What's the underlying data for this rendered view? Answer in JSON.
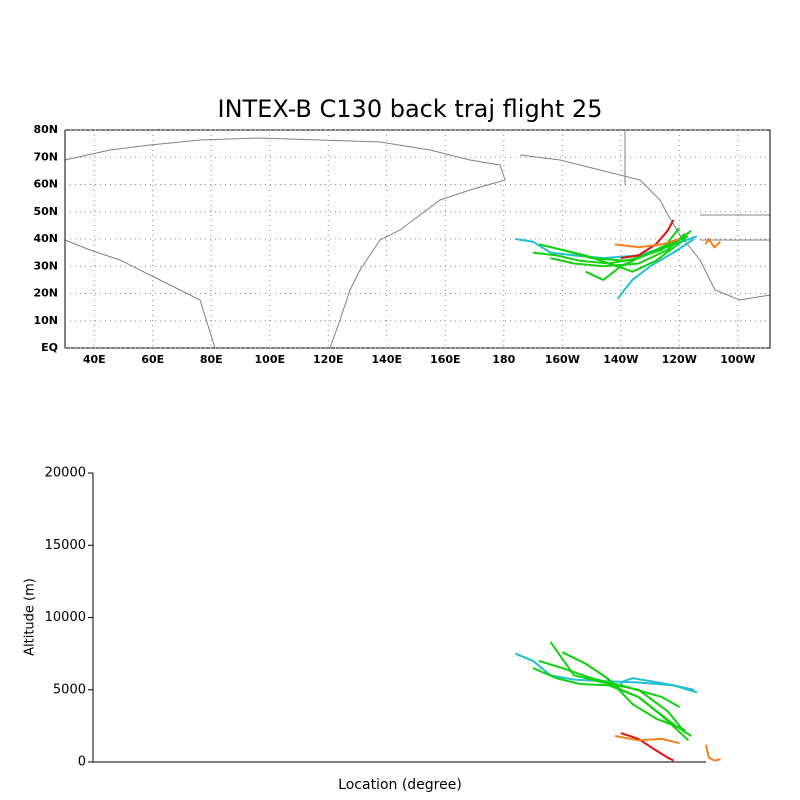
{
  "chart_data": [
    {
      "type": "map",
      "title": "INTEX-B C130 back traj flight 25",
      "xlim": [
        30,
        271
      ],
      "ylim": [
        0,
        80
      ],
      "xticks": [
        {
          "value": 40,
          "label": "40E"
        },
        {
          "value": 60,
          "label": "60E"
        },
        {
          "value": 80,
          "label": "80E"
        },
        {
          "value": 100,
          "label": "100E"
        },
        {
          "value": 120,
          "label": "120E"
        },
        {
          "value": 140,
          "label": "140E"
        },
        {
          "value": 160,
          "label": "160E"
        },
        180,
        {
          "value": 200,
          "label": "160W"
        },
        {
          "value": 220,
          "label": "140W"
        },
        {
          "value": 240,
          "label": "120W"
        },
        {
          "value": 260,
          "label": "100W"
        }
      ],
      "yticks": [
        {
          "value": 0,
          "label": "EQ"
        },
        {
          "value": 10,
          "label": "10N"
        },
        {
          "value": 20,
          "label": "20N"
        },
        {
          "value": 30,
          "label": "30N"
        },
        {
          "value": 40,
          "label": "40N"
        },
        {
          "value": 50,
          "label": "50N"
        },
        {
          "value": 60,
          "label": "60N"
        },
        {
          "value": 70,
          "label": "70N"
        },
        {
          "value": 80,
          "label": "80N"
        }
      ],
      "grid": true,
      "series": [
        {
          "color": "#20c0d0",
          "lon": [
            184,
            190,
            196,
            204,
            214,
            226,
            238,
            246
          ],
          "lat": [
            40,
            39,
            35,
            34,
            33,
            34,
            38,
            41
          ]
        },
        {
          "color": "#20c0d0",
          "lon": [
            219,
            221,
            224,
            230,
            238,
            245
          ],
          "lat": [
            18,
            21,
            25,
            30,
            35,
            40
          ]
        },
        {
          "color": "#10d010",
          "lon": [
            192,
            200,
            210,
            222,
            234,
            240
          ],
          "lat": [
            38,
            36,
            33,
            32,
            36,
            44
          ]
        },
        {
          "color": "#10d010",
          "lon": [
            196,
            204,
            214,
            226,
            236,
            242
          ],
          "lat": [
            33,
            31,
            30,
            31,
            36,
            42
          ]
        },
        {
          "color": "#10d010",
          "lon": [
            200,
            208,
            216,
            224,
            232,
            242
          ],
          "lat": [
            36,
            34,
            31,
            28,
            32,
            40
          ]
        },
        {
          "color": "#10d010",
          "lon": [
            208,
            214,
            220,
            226,
            234,
            243
          ],
          "lat": [
            28,
            25,
            30,
            33,
            37,
            41
          ]
        },
        {
          "color": "#10d010",
          "lon": [
            190,
            198,
            206,
            216,
            226,
            238,
            244
          ],
          "lat": [
            35,
            34,
            32,
            31,
            33,
            38,
            43
          ]
        },
        {
          "color": "#e01010",
          "lon": [
            220,
            226,
            232,
            236,
            238
          ],
          "lat": [
            33,
            34,
            38,
            43,
            47
          ]
        },
        {
          "color": "#f08020",
          "lon": [
            218,
            226,
            234,
            240
          ],
          "lat": [
            38,
            37,
            38,
            40
          ]
        },
        {
          "color": "#f08020",
          "lon": [
            249,
            250,
            252,
            254
          ],
          "lat": [
            38,
            40,
            37,
            39
          ]
        }
      ]
    },
    {
      "type": "line",
      "xlabel": "Location (degree)",
      "ylabel": "Altitude (m)",
      "xlim": [
        40,
        249
      ],
      "ylim": [
        0,
        20000
      ],
      "yticks": [
        0,
        5000,
        10000,
        15000,
        20000
      ],
      "series": [
        {
          "color": "#20c0d0",
          "x": [
            184,
            190,
            196,
            204,
            214,
            226,
            238,
            246
          ],
          "values": [
            7500,
            7000,
            6000,
            5700,
            5600,
            5500,
            5300,
            4800
          ]
        },
        {
          "color": "#20c0d0",
          "x": [
            219,
            221,
            224,
            230,
            238,
            245
          ],
          "values": [
            5200,
            5600,
            5800,
            5600,
            5300,
            5000
          ]
        },
        {
          "color": "#10d010",
          "x": [
            192,
            200,
            210,
            222,
            234,
            240
          ],
          "values": [
            7000,
            6500,
            5800,
            5200,
            4500,
            3800
          ]
        },
        {
          "color": "#10d010",
          "x": [
            196,
            204,
            214,
            226,
            236,
            242
          ],
          "values": [
            8300,
            6000,
            5500,
            5000,
            3500,
            2000
          ]
        },
        {
          "color": "#10d010",
          "x": [
            200,
            208,
            216,
            224,
            232,
            242
          ],
          "values": [
            7600,
            6800,
            5700,
            4000,
            3000,
            2200
          ]
        },
        {
          "color": "#10d010",
          "x": [
            208,
            214,
            220,
            226,
            234,
            243
          ],
          "values": [
            6800,
            6000,
            5000,
            4500,
            3200,
            1500
          ]
        },
        {
          "color": "#10d010",
          "x": [
            190,
            198,
            206,
            216,
            226,
            238,
            244
          ],
          "values": [
            6500,
            5800,
            5400,
            5300,
            4500,
            2600,
            1800
          ]
        },
        {
          "color": "#e01010",
          "x": [
            220,
            226,
            232,
            236,
            238
          ],
          "values": [
            2000,
            1600,
            800,
            300,
            100
          ]
        },
        {
          "color": "#f08020",
          "x": [
            218,
            226,
            234,
            240
          ],
          "values": [
            1800,
            1500,
            1600,
            1300
          ]
        },
        {
          "color": "#f08020",
          "x": [
            249,
            250,
            252,
            254
          ],
          "values": [
            1200,
            300,
            100,
            200
          ]
        }
      ]
    }
  ]
}
